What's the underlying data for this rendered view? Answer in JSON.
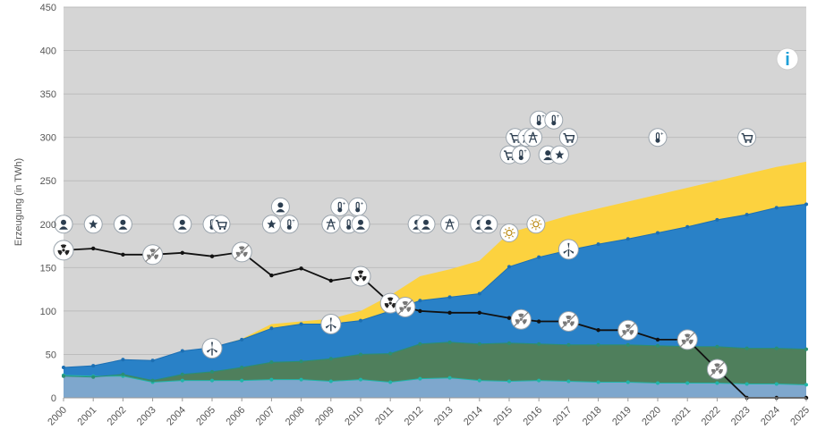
{
  "chart_data": {
    "type": "area",
    "ylabel": "Erzeugung (in TWh)",
    "xlabel": "",
    "ylim": [
      0,
      450
    ],
    "yticks": [
      0,
      50,
      100,
      150,
      200,
      250,
      300,
      350,
      400,
      450
    ],
    "x": [
      "2000",
      "2001",
      "2002",
      "2003",
      "2004",
      "2005",
      "2006",
      "2007",
      "2008",
      "2009",
      "2010",
      "2011",
      "2012",
      "2013",
      "2014",
      "2015",
      "2016",
      "2017",
      "2018",
      "2019",
      "2020",
      "2021",
      "2022",
      "2023",
      "2024",
      "2025"
    ],
    "grid": true,
    "background": "#d5d5d5",
    "stacked_series": [
      {
        "color": "#7ea7cd",
        "values": [
          26,
          25,
          25,
          18,
          20,
          20,
          20,
          21,
          21,
          19,
          21,
          18,
          22,
          23,
          20,
          19,
          20,
          19,
          18,
          18,
          17,
          17,
          17,
          16,
          16,
          15
        ]
      },
      {
        "color": "#4f7f5c",
        "values": [
          25,
          24,
          27,
          20,
          27,
          30,
          35,
          41,
          42,
          45,
          50,
          51,
          62,
          64,
          62,
          63,
          62,
          61,
          61,
          61,
          60,
          59,
          59,
          57,
          57,
          56
        ]
      },
      {
        "color": "#2981c7",
        "values": [
          35,
          37,
          44,
          43,
          54,
          58,
          67,
          80,
          85,
          85,
          89,
          100,
          112,
          116,
          120,
          151,
          162,
          170,
          177,
          183,
          190,
          197,
          205,
          211,
          219,
          223
        ]
      },
      {
        "color": "#fcd23f",
        "values": [
          35,
          37,
          44,
          43,
          54,
          58,
          68,
          85,
          88,
          91,
          100,
          118,
          140,
          148,
          158,
          190,
          200,
          210,
          218,
          226,
          234,
          242,
          250,
          258,
          266,
          272
        ]
      }
    ],
    "line_series": {
      "color": "#111111",
      "values": [
        170,
        172,
        165,
        165,
        167,
        163,
        168,
        141,
        149,
        135,
        140,
        109,
        100,
        98,
        98,
        92,
        88,
        88,
        78,
        78,
        67,
        67,
        33,
        0,
        0,
        0
      ]
    },
    "event_icons": [
      {
        "x": "2000",
        "y": 200,
        "icon": "person-icon"
      },
      {
        "x": "2001",
        "y": 200,
        "icon": "star-icon"
      },
      {
        "x": "2002",
        "y": 200,
        "icon": "person-icon"
      },
      {
        "x": "2004",
        "y": 200,
        "icon": "person-icon"
      },
      {
        "x": "2005",
        "y": 200,
        "icon": "thermometer-icon"
      },
      {
        "x": "2005.3",
        "y": 200,
        "icon": "cart-icon"
      },
      {
        "x": "2007",
        "y": 200,
        "icon": "star-icon"
      },
      {
        "x": "2007.3",
        "y": 220,
        "icon": "person-icon"
      },
      {
        "x": "2007.6",
        "y": 200,
        "icon": "thermometer-icon"
      },
      {
        "x": "2009",
        "y": 200,
        "icon": "pylon-icon"
      },
      {
        "x": "2009.3",
        "y": 220,
        "icon": "thermometer-icon"
      },
      {
        "x": "2009.6",
        "y": 200,
        "icon": "thermometer-icon"
      },
      {
        "x": "2009.9",
        "y": 220,
        "icon": "thermometer-icon"
      },
      {
        "x": "2010",
        "y": 200,
        "icon": "person-icon"
      },
      {
        "x": "2011.9",
        "y": 200,
        "icon": "person-icon"
      },
      {
        "x": "2012.2",
        "y": 200,
        "icon": "person-icon"
      },
      {
        "x": "2013",
        "y": 200,
        "icon": "pylon-icon"
      },
      {
        "x": "2014",
        "y": 200,
        "icon": "person-icon"
      },
      {
        "x": "2014.3",
        "y": 200,
        "icon": "person-icon"
      },
      {
        "x": "2015",
        "y": 190,
        "icon": "sun-icon"
      },
      {
        "x": "2015.9",
        "y": 200,
        "icon": "sun-icon"
      },
      {
        "x": "2015",
        "y": 280,
        "icon": "cart-icon"
      },
      {
        "x": "2015.2",
        "y": 300,
        "icon": "cart-icon"
      },
      {
        "x": "2015.4",
        "y": 280,
        "icon": "thermometer-icon"
      },
      {
        "x": "2015.6",
        "y": 300,
        "icon": "pylon-icon"
      },
      {
        "x": "2015.8",
        "y": 300,
        "icon": "pylon-icon"
      },
      {
        "x": "2016",
        "y": 320,
        "icon": "thermometer-icon"
      },
      {
        "x": "2016.3",
        "y": 280,
        "icon": "person-icon"
      },
      {
        "x": "2016.5",
        "y": 320,
        "icon": "thermometer-icon"
      },
      {
        "x": "2016.7",
        "y": 280,
        "icon": "star-icon"
      },
      {
        "x": "2017",
        "y": 300,
        "icon": "cart-icon"
      },
      {
        "x": "2020",
        "y": 300,
        "icon": "thermometer-icon"
      },
      {
        "x": "2023",
        "y": 300,
        "icon": "cart-icon"
      }
    ],
    "line_icons": [
      {
        "x": "2000",
        "icon": "nuclear-icon"
      },
      {
        "x": "2003",
        "icon": "nuclear-off-icon"
      },
      {
        "x": "2005",
        "icon": "wind-icon",
        "y": 57
      },
      {
        "x": "2006",
        "icon": "nuclear-off-icon"
      },
      {
        "x": "2009",
        "icon": "wind-icon",
        "y": 85
      },
      {
        "x": "2010",
        "icon": "nuclear-icon"
      },
      {
        "x": "2011",
        "icon": "nuclear-icon"
      },
      {
        "x": "2011.5",
        "icon": "nuclear-off-icon"
      },
      {
        "x": "2015.4",
        "icon": "nuclear-off-icon"
      },
      {
        "x": "2017",
        "icon": "nuclear-off-icon"
      },
      {
        "x": "2017",
        "icon": "wind-icon",
        "y": 171
      },
      {
        "x": "2019",
        "icon": "nuclear-off-icon"
      },
      {
        "x": "2021",
        "icon": "nuclear-off-icon"
      },
      {
        "x": "2022",
        "icon": "nuclear-off-icon"
      }
    ]
  },
  "info_button": {
    "label": "i",
    "color": "#1ea0d8"
  }
}
